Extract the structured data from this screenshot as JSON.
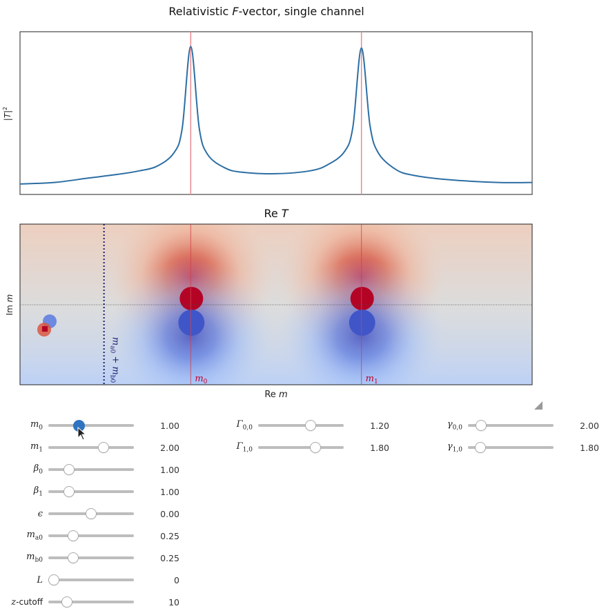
{
  "chart_data": [
    {
      "type": "line",
      "title": "Relativistic F-vector, single channel",
      "ylabel": "|T|²",
      "xlabel": "",
      "grid": false,
      "x": [
        0.0,
        0.2,
        0.4,
        0.6,
        0.7,
        0.8,
        0.9,
        0.95,
        1.0,
        1.05,
        1.1,
        1.2,
        1.3,
        1.5,
        1.7,
        1.8,
        1.9,
        1.95,
        2.0,
        2.05,
        2.1,
        2.2,
        2.3,
        2.5,
        2.8,
        3.0
      ],
      "y": [
        0.02,
        0.03,
        0.06,
        0.09,
        0.11,
        0.14,
        0.23,
        0.4,
        0.96,
        0.4,
        0.22,
        0.13,
        0.1,
        0.09,
        0.11,
        0.15,
        0.24,
        0.41,
        0.95,
        0.42,
        0.23,
        0.12,
        0.08,
        0.05,
        0.03,
        0.03
      ],
      "vlines": [
        1.0,
        2.0
      ],
      "vline_color": "#e8898f",
      "line_color": "#2c6ea3",
      "xlim": [
        0.0,
        3.0
      ],
      "ylim": [
        0.0,
        1.0
      ]
    },
    {
      "type": "heatmap",
      "title": "Re T",
      "xlabel": "Re m",
      "ylabel": "Im m",
      "colormap": "coolwarm",
      "xlim": [
        0.0,
        3.0
      ],
      "ylim": [
        -1.0,
        1.0
      ],
      "poles": [
        {
          "x": 1.0,
          "y": 0.0,
          "label": "m0"
        },
        {
          "x": 2.0,
          "y": 0.0,
          "label": "m1"
        }
      ],
      "threshold": {
        "x": 0.5,
        "label": "ma0 + mb0",
        "color": "#1a1a6e"
      },
      "pole_label_color": "#c0002a",
      "zero_line": 0.0
    }
  ],
  "controls": {
    "col1": [
      {
        "sym": "m",
        "sub": "0",
        "value": "1.00",
        "frac": 0.33,
        "active": true
      },
      {
        "sym": "m",
        "sub": "1",
        "value": "2.00",
        "frac": 0.67
      },
      {
        "sym": "β",
        "sub": "0",
        "value": "1.00",
        "frac": 0.2
      },
      {
        "sym": "β",
        "sub": "1",
        "value": "1.00",
        "frac": 0.2
      },
      {
        "sym": "ϵ",
        "sub": "",
        "value": "0.00",
        "frac": 0.5
      },
      {
        "sym": "m",
        "sub": "a0",
        "value": "0.25",
        "frac": 0.26
      },
      {
        "sym": "m",
        "sub": "b0",
        "value": "0.25",
        "frac": 0.26
      },
      {
        "sym": "L",
        "sub": "",
        "value": "0",
        "frac": 0.0
      },
      {
        "sym": "z",
        "sub": "",
        "suffix": "-cutoff",
        "value": "10",
        "frac": 0.18
      }
    ],
    "col2": [
      {
        "sym": "Γ",
        "sub": "0,0",
        "value": "1.20",
        "frac": 0.63
      },
      {
        "sym": "Γ",
        "sub": "1,0",
        "value": "1.80",
        "frac": 0.69
      }
    ],
    "col3": [
      {
        "sym": "γ",
        "sub": "0,0",
        "value": "2.00",
        "frac": 0.1
      },
      {
        "sym": "γ",
        "sub": "1,0",
        "value": "1.80",
        "frac": 0.09
      }
    ]
  },
  "icons": {
    "resize": "resize-grip-icon",
    "cursor": "mouse-pointer-icon"
  }
}
